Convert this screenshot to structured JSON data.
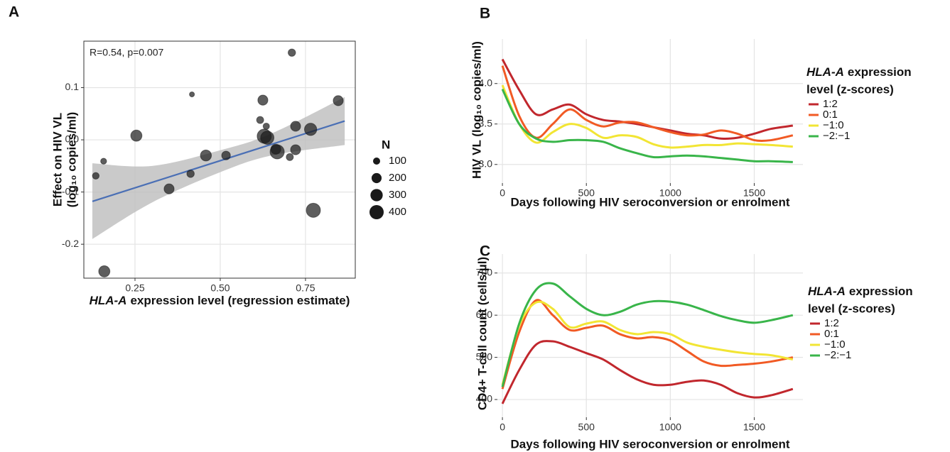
{
  "chart_data": [
    {
      "type": "scatter",
      "panel": "A",
      "annotation": "R=0.54, p=0.007",
      "x_label_gene": "HLA-A",
      "x_label": "expression level (regression estimate)",
      "y_label": [
        "Effect on HIV VL",
        "(log₁₀ copies/ml)"
      ],
      "x": [
        0.135,
        0.158,
        0.16,
        0.254,
        0.35,
        0.413,
        0.417,
        0.458,
        0.517,
        0.617,
        0.625,
        0.629,
        0.635,
        0.638,
        0.663,
        0.667,
        0.704,
        0.71,
        0.721,
        0.721,
        0.765,
        0.773,
        0.846
      ],
      "y": [
        -0.069,
        -0.041,
        -0.252,
        0.008,
        -0.094,
        -0.065,
        0.087,
        -0.03,
        -0.03,
        0.038,
        0.076,
        0.007,
        0.026,
        0.004,
        -0.018,
        -0.023,
        -0.033,
        0.167,
        0.026,
        -0.019,
        0.02,
        -0.135,
        0.075
      ],
      "size": [
        90,
        70,
        250,
        250,
        200,
        110,
        50,
        240,
        150,
        100,
        200,
        400,
        80,
        350,
        200,
        400,
        100,
        110,
        200,
        200,
        300,
        400,
        200
      ],
      "color": "#1a1a1a",
      "trend": {
        "x": [
          0.125,
          0.865
        ],
        "y": [
          -0.118,
          0.036
        ],
        "color": "#4a6fb5"
      },
      "band": {
        "x": [
          0.125,
          0.3,
          0.5,
          0.65,
          0.865
        ],
        "lower": [
          -0.19,
          -0.12,
          -0.062,
          -0.03,
          -0.01
        ],
        "upper": [
          -0.045,
          -0.05,
          -0.02,
          0.012,
          0.082
        ],
        "color": "#bdbdbd"
      },
      "size_title": "N",
      "size_legend": [
        100,
        200,
        300,
        400
      ],
      "xlim": [
        0.1,
        0.896
      ],
      "ylim": [
        -0.265,
        0.189
      ],
      "xticks": [
        0.25,
        {
          "value": 0.5,
          "label": "0.50"
        },
        0.75
      ],
      "yticks": [
        0.1,
        {
          "value": 0,
          "label": "0.0"
        },
        -0.1,
        -0.2
      ],
      "grid": true
    },
    {
      "type": "line",
      "panel": "B",
      "x_label": "Days following HIV seroconversion or enrolment",
      "y_label": "HIV VL (log₁₀ copies/ml)",
      "legend_title_gene": "HLA-A",
      "legend_title_lines": [
        "expression",
        "level (z-scores)"
      ],
      "x": [
        0,
        100,
        200,
        300,
        400,
        500,
        600,
        700,
        800,
        900,
        1000,
        1100,
        1200,
        1300,
        1400,
        1500,
        1600,
        1730
      ],
      "series": [
        {
          "name": "1:2",
          "color": "#c1272d",
          "values": [
            4.3,
            3.92,
            3.62,
            3.68,
            3.74,
            3.62,
            3.55,
            3.53,
            3.5,
            3.46,
            3.42,
            3.38,
            3.36,
            3.32,
            3.33,
            3.38,
            3.44,
            3.48
          ]
        },
        {
          "name": "0:1",
          "color": "#f15a24",
          "values": [
            4.22,
            3.6,
            3.33,
            3.5,
            3.68,
            3.55,
            3.47,
            3.52,
            3.52,
            3.46,
            3.4,
            3.36,
            3.37,
            3.42,
            3.38,
            3.3,
            3.3,
            3.36
          ]
        },
        {
          "name": "−1:0",
          "color": "#f2e534",
          "values": [
            3.98,
            3.5,
            3.27,
            3.4,
            3.5,
            3.45,
            3.33,
            3.36,
            3.34,
            3.25,
            3.21,
            3.22,
            3.24,
            3.24,
            3.26,
            3.25,
            3.24,
            3.22
          ]
        },
        {
          "name": "−2:−1",
          "color": "#39b54a",
          "values": [
            3.93,
            3.5,
            3.32,
            3.28,
            3.3,
            3.3,
            3.28,
            3.2,
            3.14,
            3.09,
            3.1,
            3.11,
            3.1,
            3.08,
            3.06,
            3.04,
            3.04,
            3.03
          ]
        }
      ],
      "xlim": [
        -30,
        1790
      ],
      "ylim": [
        2.77,
        4.55
      ],
      "xticks": [
        0,
        500,
        1000,
        1500
      ],
      "yticks": [
        {
          "value": 3,
          "label": "3.0"
        },
        3.5,
        {
          "value": 4,
          "label": "4.0"
        }
      ],
      "grid": true
    },
    {
      "type": "line",
      "panel": "C",
      "x_label": "Days following HIV seroconversion or enrolment",
      "y_label": "CD4+ T-cell count (cells/µl)",
      "legend_title_gene": "HLA-A",
      "legend_title_lines": [
        "expression",
        "level (z-scores)"
      ],
      "x": [
        0,
        100,
        200,
        300,
        400,
        500,
        600,
        700,
        800,
        900,
        1000,
        1100,
        1200,
        1300,
        1400,
        1500,
        1600,
        1730
      ],
      "series": [
        {
          "name": "1:2",
          "color": "#c1272d",
          "values": [
            390,
            470,
            530,
            538,
            525,
            510,
            495,
            470,
            448,
            435,
            435,
            442,
            445,
            435,
            415,
            405,
            410,
            425
          ]
        },
        {
          "name": "0:1",
          "color": "#f15a24",
          "values": [
            425,
            560,
            635,
            600,
            565,
            570,
            575,
            555,
            545,
            548,
            540,
            515,
            490,
            480,
            482,
            485,
            490,
            500
          ]
        },
        {
          "name": "−1:0",
          "color": "#f2e534",
          "values": [
            435,
            575,
            630,
            615,
            572,
            580,
            585,
            565,
            555,
            560,
            555,
            535,
            525,
            518,
            512,
            508,
            505,
            495
          ]
        },
        {
          "name": "−2:−1",
          "color": "#39b54a",
          "values": [
            430,
            580,
            660,
            675,
            645,
            615,
            600,
            608,
            625,
            633,
            632,
            625,
            612,
            598,
            588,
            582,
            588,
            600
          ]
        }
      ],
      "xlim": [
        -30,
        1790
      ],
      "ylim": [
        358,
        745
      ],
      "xticks": [
        0,
        500,
        1000,
        1500
      ],
      "yticks": [
        400,
        500,
        600,
        700
      ],
      "grid": true
    }
  ]
}
